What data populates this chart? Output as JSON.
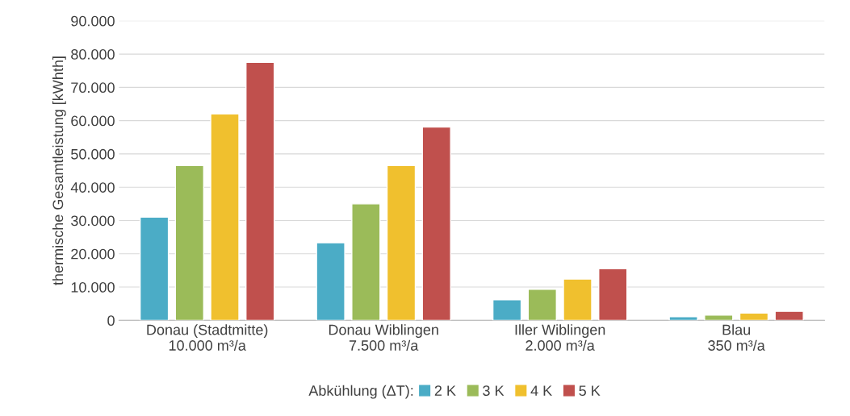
{
  "chart_data": {
    "type": "bar",
    "ylabel": "thermische Gesamtleistung [kWhth]",
    "legend_title": "Abkühlung (ΔT):",
    "categories": [
      "Donau (Stadtmitte)\n10.000 m³/a",
      "Donau Wiblingen\n7.500 m³/a",
      "Iller Wiblingen\n2.000 m³/a",
      "Blau\n350 m³/a"
    ],
    "series": [
      {
        "name": "2 K",
        "color": "#4bacc6",
        "values": [
          31000,
          23300,
          6200,
          1100
        ]
      },
      {
        "name": "3 K",
        "color": "#9bbb59",
        "values": [
          46500,
          35000,
          9300,
          1600
        ]
      },
      {
        "name": "4 K",
        "color": "#f0c02e",
        "values": [
          62000,
          46500,
          12400,
          2200
        ]
      },
      {
        "name": "5 K",
        "color": "#c0504d",
        "values": [
          77500,
          58100,
          15500,
          2700
        ]
      }
    ],
    "ylim": [
      0,
      90000
    ],
    "yticks": [
      0,
      {
        "value": 10000,
        "label": "10.000"
      },
      {
        "value": 20000,
        "label": "20.000"
      },
      {
        "value": 30000,
        "label": "30.000"
      },
      {
        "value": 40000,
        "label": "40.000"
      },
      {
        "value": 50000,
        "label": "50.000"
      },
      {
        "value": 60000,
        "label": "60.000"
      },
      {
        "value": 70000,
        "label": "70.000"
      },
      {
        "value": 80000,
        "label": "80.000"
      },
      {
        "value": 90000,
        "label": "90.000"
      }
    ],
    "grid": "y",
    "legend": "bottom"
  }
}
